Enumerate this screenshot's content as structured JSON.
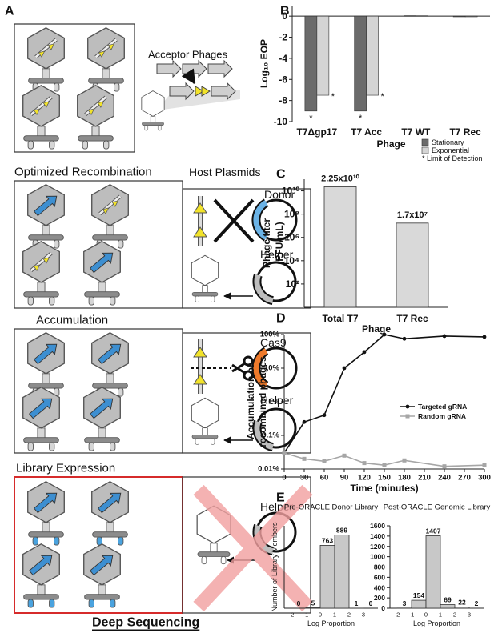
{
  "diagram": {
    "panel": "A",
    "acceptor_label": "Acceptor Phages",
    "steps": [
      {
        "title": "Optimized Recombination",
        "plasmid_header": "Host Plasmids",
        "plasmids": [
          "Donor",
          "Helper"
        ]
      },
      {
        "title": "Accumulation",
        "plasmids": [
          "Cas9",
          "Helper"
        ]
      },
      {
        "title": "Library Expression",
        "plasmids": [
          "Helper"
        ]
      }
    ],
    "final": "Deep Sequencing"
  },
  "chart_data": [
    {
      "panel": "B",
      "type": "bar",
      "categories": [
        "T7Δgp17",
        "T7 Acc",
        "T7 WT",
        "T7 Rec"
      ],
      "series": [
        {
          "name": "Stationary",
          "color": "#6b6b6b",
          "values": [
            -9,
            -9,
            0.05,
            -0.05
          ],
          "flags": [
            "*",
            "*",
            null,
            null
          ]
        },
        {
          "name": "Exponential",
          "color": "#d4d4d4",
          "values": [
            -7.5,
            -7.5,
            0.05,
            -0.05
          ],
          "flags": [
            "*",
            "*",
            null,
            null
          ]
        }
      ],
      "ylim": [
        -10,
        1
      ],
      "yticks": [
        0,
        -2,
        -4,
        -6,
        -8,
        -10
      ],
      "ylabel": "Log₁₀ EOP",
      "xlabel": "Phage",
      "legend_note": "* Limit of Detection"
    },
    {
      "panel": "C",
      "type": "bar",
      "log_scale": true,
      "categories": [
        "Total T7",
        "T7 Rec"
      ],
      "values": [
        22500000000,
        17000000
      ],
      "value_labels": [
        "2.25x10¹⁰",
        "1.7x10⁷"
      ],
      "color": "#d9d9d9",
      "ylim": [
        1,
        100000000000
      ],
      "yticks": [
        {
          "value": 100,
          "label": "10²"
        },
        {
          "value": 10000,
          "label": "10⁴"
        },
        {
          "value": 1000000,
          "label": "10⁶"
        },
        {
          "value": 100000000,
          "label": "10⁸"
        },
        {
          "value": 10000000000,
          "label": "10¹⁰"
        }
      ],
      "ylabel": [
        "Phage titer",
        "(PFU/mL)"
      ],
      "xlabel": "Phage"
    },
    {
      "panel": "D",
      "type": "line",
      "log_scale": true,
      "x": [
        0,
        30,
        60,
        90,
        120,
        150,
        180,
        240,
        300
      ],
      "series": [
        {
          "name": "Targeted gRNA",
          "color": "#111111",
          "marker": "circle",
          "values": [
            0.03,
            0.25,
            0.4,
            10,
            30,
            100,
            75,
            90,
            85
          ]
        },
        {
          "name": "Random gRNA",
          "color": "#a6a6a6",
          "marker": "square",
          "values": [
            0.03,
            0.02,
            0.017,
            0.025,
            0.015,
            0.013,
            0.018,
            0.012,
            0.013
          ]
        }
      ],
      "xlim": [
        0,
        300
      ],
      "xticks": [
        0,
        30,
        60,
        90,
        120,
        150,
        180,
        210,
        240,
        270,
        300
      ],
      "ylim": [
        0.01,
        100
      ],
      "yticks": [
        {
          "value": 0.01,
          "label": "0.01%"
        },
        {
          "value": 0.1,
          "label": "0.1%"
        },
        {
          "value": 1,
          "label": "1%"
        },
        {
          "value": 10,
          "label": "10%"
        },
        {
          "value": 100,
          "label": "100%"
        }
      ],
      "xlabel": "Time (minutes)",
      "ylabel": [
        "Accumulation of",
        "recombined phages"
      ]
    },
    {
      "panel": "E",
      "type": "histogram",
      "title": "Pre-ORACLE Donor Library",
      "bins": [
        -2,
        -1,
        0,
        1,
        2,
        3,
        4
      ],
      "values": [
        0,
        5,
        763,
        889,
        1,
        0
      ],
      "color": "#c8c8c8",
      "xlim": [
        -2.5,
        4
      ],
      "xticks": [
        -2,
        -1,
        0,
        1,
        2,
        3
      ],
      "ylim": [
        0,
        1000
      ],
      "xlabel": "Log Proportion",
      "ylabel": "Number of Library Members"
    },
    {
      "type": "histogram",
      "title": "Post-ORACLE Genomic Library",
      "bins": [
        -2,
        -1,
        0,
        1,
        2,
        3,
        4
      ],
      "values": [
        3,
        154,
        1407,
        69,
        22,
        2
      ],
      "color": "#c8c8c8",
      "xlim": [
        -2.5,
        4
      ],
      "xticks": [
        -2,
        -1,
        0,
        1,
        2,
        3
      ],
      "ylim": [
        0,
        1600
      ],
      "yticks": [
        0,
        200,
        400,
        600,
        800,
        1000,
        1200,
        1400,
        1600
      ],
      "xlabel": "Log Proportion"
    }
  ]
}
